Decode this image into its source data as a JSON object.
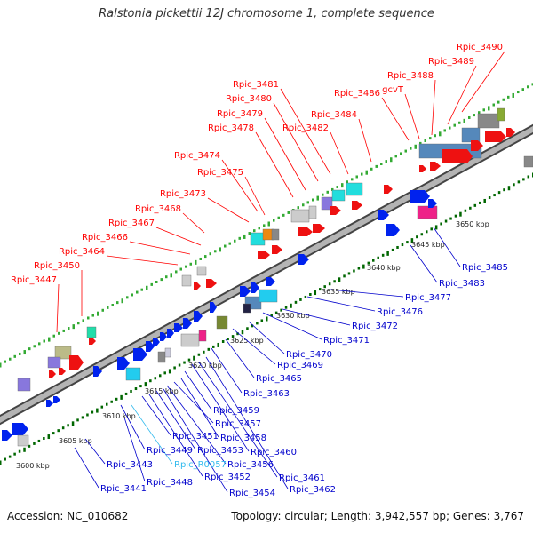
{
  "title": "Ralstonia pickettii 12J chromosome 1, complete sequence",
  "footer": {
    "accession": "Accession: NC_010682",
    "topology": "Topology: circular; Length: 3,942,557 bp; Genes: 3,767"
  },
  "colors": {
    "forward_label": "#ff0000",
    "reverse_label": "#0000cc",
    "rna_label": "#33bbee",
    "backbone": "#888888",
    "tick_forward": "#33aa33",
    "tick_reverse": "#006600"
  },
  "scale_labels": [
    "3600 kbp",
    "3605 kbp",
    "3610 kbp",
    "3615 kbp",
    "3620 kbp",
    "3625 kbp",
    "3630 kbp",
    "3635 kbp",
    "3640 kbp",
    "3645 kbp",
    "3650 kbp"
  ],
  "forward_genes": [
    "Rpic_3447",
    "Rpic_3450",
    "Rpic_3464",
    "Rpic_3466",
    "Rpic_3467",
    "Rpic_3468",
    "Rpic_3473",
    "Rpic_3475",
    "Rpic_3474",
    "Rpic_3478",
    "Rpic_3479",
    "Rpic_3480",
    "Rpic_3481",
    "Rpic_3482",
    "Rpic_3484",
    "Rpic_3486",
    "gcvT",
    "Rpic_3488",
    "Rpic_3489",
    "Rpic_3490"
  ],
  "reverse_genes": [
    "Rpic_3441",
    "Rpic_3443",
    "Rpic_3448",
    "Rpic_3449",
    "Rpic_R0057",
    "Rpic_3451",
    "Rpic_3452",
    "Rpic_3453",
    "Rpic_3454",
    "Rpic_3456",
    "Rpic_3457",
    "Rpic_3458",
    "Rpic_3459",
    "Rpic_3460",
    "Rpic_3461",
    "Rpic_3462",
    "Rpic_3463",
    "Rpic_3465",
    "Rpic_3469",
    "Rpic_3470",
    "Rpic_3471",
    "Rpic_3472",
    "Rpic_3476",
    "Rpic_3477",
    "Rpic_3483",
    "Rpic_3485"
  ]
}
